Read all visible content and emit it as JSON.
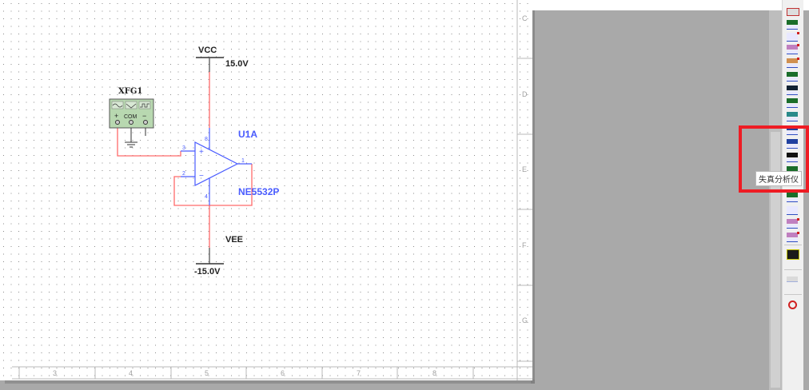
{
  "schematic": {
    "function_generator": {
      "ref": "XFG1",
      "terminals": {
        "plus": "+",
        "com": "COM",
        "minus": "−"
      }
    },
    "opamp": {
      "ref": "U1A",
      "model": "NE5532P",
      "pins": {
        "noninv": "3",
        "inv": "2",
        "out": "1",
        "vpos": "8",
        "vneg": "4"
      },
      "plus_sign": "+",
      "minus_sign": "−"
    },
    "vcc": {
      "name": "VCC",
      "value": "15.0V"
    },
    "vee": {
      "name": "VEE",
      "value": "-15.0V"
    }
  },
  "border": {
    "rows": [
      "C",
      "D",
      "E",
      "F",
      "G"
    ],
    "columns": [
      "3",
      "4",
      "5",
      "6",
      "7",
      "8"
    ]
  },
  "toolbar": {
    "tooltip": "失真分析仪",
    "highlighted_tool": "distortion-analyzer"
  },
  "colors": {
    "wire": "#ff6a6a",
    "component": "#4040ff",
    "highlight": "#ee1c24",
    "fg_body": "#b8d8b0"
  }
}
